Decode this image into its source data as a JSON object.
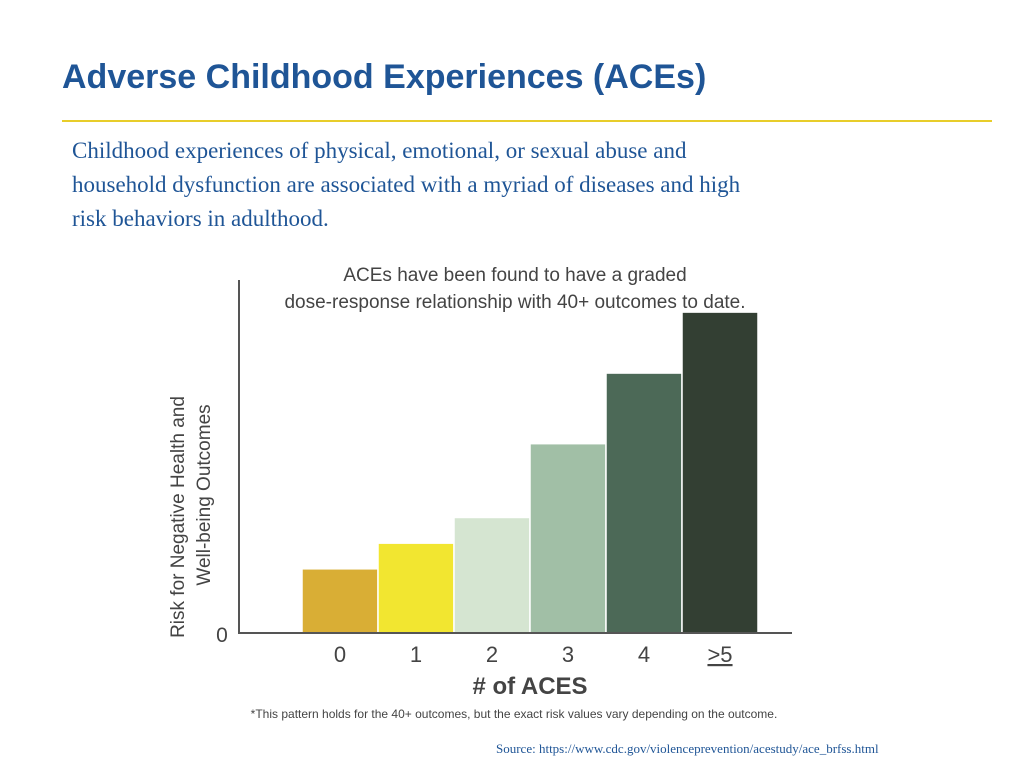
{
  "slide": {
    "title": "Adverse Childhood Experiences (ACEs)",
    "body_lines": [
      "Childhood experiences of physical, emotional, or sexual abuse and",
      "household dysfunction are associated with a myriad of diseases and high",
      "risk behaviors in adulthood."
    ],
    "source": "Source: https://www.cdc.gov/violenceprevention/acestudy/ace_brfss.html",
    "accent_color": "#1f5596",
    "rule_color": "#e8cd2a"
  },
  "chart_data": {
    "type": "bar",
    "title_lines": [
      "ACEs have been found to have a graded",
      "dose-response relationship with 40+ outcomes to date."
    ],
    "ylabel_lines": [
      "Risk for Negative Health and",
      "Well-being Outcomes"
    ],
    "xlabel": "# of ACES",
    "categories": [
      "0",
      "1",
      "2",
      "3",
      "4",
      ">5"
    ],
    "values": [
      0.2,
      0.28,
      0.36,
      0.59,
      0.81,
      1.0
    ],
    "ylim": [
      0,
      1.1
    ],
    "y_tick_label": "0",
    "colors": [
      "#d9ae35",
      "#f2e630",
      "#d5e5d1",
      "#a1bfa6",
      "#4c6957",
      "#333f33"
    ],
    "footnote": "*This pattern holds for the 40+ outcomes, but the exact risk values vary depending on the outcome.",
    "grid": false,
    "legend": "none"
  }
}
